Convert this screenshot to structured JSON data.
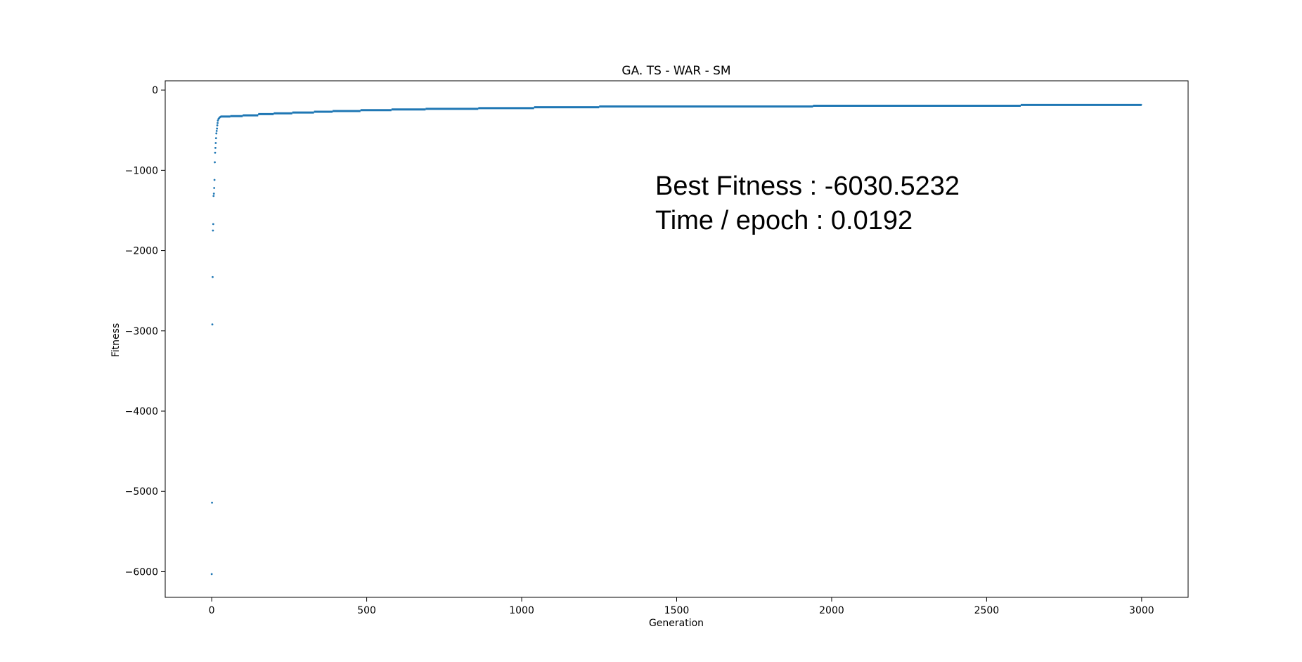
{
  "chart_data": {
    "type": "scatter",
    "title": "GA. TS - WAR - SM",
    "xlabel": "Generation",
    "ylabel": "Fitness",
    "xlim": [
      -150,
      3150
    ],
    "ylim": [
      -6320,
      115
    ],
    "xticks": [
      0,
      500,
      1000,
      1500,
      2000,
      2500,
      3000
    ],
    "yticks": [
      0,
      -1000,
      -2000,
      -3000,
      -4000,
      -5000,
      -6000
    ],
    "ytick_labels": [
      "0",
      "−1000",
      "−2000",
      "−3000",
      "−4000",
      "−5000",
      "−6000"
    ],
    "grid": false,
    "marker_color": "#1f77b4",
    "annotations": [
      "Best Fitness : -6030.5232",
      "Time / epoch : 0.0192"
    ],
    "series": [
      {
        "early_points": [
          [
            0,
            -6030
          ],
          [
            1,
            -5140
          ],
          [
            2,
            -2920
          ],
          [
            3,
            -2330
          ],
          [
            4,
            -1750
          ],
          [
            5,
            -1670
          ],
          [
            6,
            -1320
          ],
          [
            7,
            -1290
          ],
          [
            8,
            -1220
          ],
          [
            9,
            -1120
          ],
          [
            10,
            -900
          ],
          [
            11,
            -780
          ],
          [
            12,
            -720
          ],
          [
            13,
            -660
          ],
          [
            14,
            -600
          ],
          [
            15,
            -540
          ],
          [
            16,
            -510
          ],
          [
            17,
            -480
          ],
          [
            18,
            -440
          ],
          [
            19,
            -410
          ],
          [
            20,
            -380
          ],
          [
            22,
            -360
          ],
          [
            24,
            -350
          ],
          [
            26,
            -340
          ],
          [
            28,
            -335
          ],
          [
            30,
            -330
          ]
        ],
        "step_points": [
          [
            30,
            -330
          ],
          [
            60,
            -325
          ],
          [
            100,
            -315
          ],
          [
            150,
            -300
          ],
          [
            200,
            -290
          ],
          [
            260,
            -280
          ],
          [
            330,
            -270
          ],
          [
            390,
            -262
          ],
          [
            480,
            -250
          ],
          [
            580,
            -242
          ],
          [
            690,
            -234
          ],
          [
            860,
            -225
          ],
          [
            1040,
            -214
          ],
          [
            1250,
            -205
          ],
          [
            1940,
            -196
          ],
          [
            2610,
            -186
          ],
          [
            3000,
            -178
          ]
        ]
      }
    ]
  }
}
